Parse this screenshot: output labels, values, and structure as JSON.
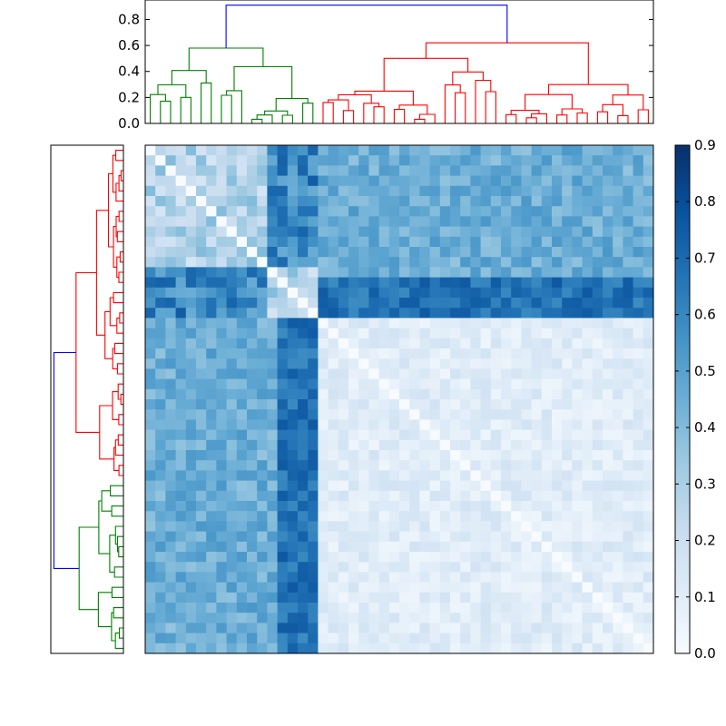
{
  "chart_data": {
    "type": "heatmap",
    "title": "",
    "xlabel": "",
    "ylabel": "",
    "grid": false,
    "matrix_size": 50,
    "colormap": "Blues",
    "color_range": [
      0.0,
      0.9
    ],
    "colorbar_ticks": [
      "0.0",
      "0.1",
      "0.2",
      "0.3",
      "0.4",
      "0.5",
      "0.6",
      "0.7",
      "0.8",
      "0.9"
    ],
    "top_dendrogram_ylim": [
      0.0,
      0.95
    ],
    "top_dendrogram_ticks": [
      "0.0",
      "0.2",
      "0.4",
      "0.6",
      "0.8"
    ],
    "cluster_colors": {
      "link": "#0000ff",
      "cluster_a": "#008000",
      "cluster_b": "#ff0000"
    },
    "cluster_a_size": 17,
    "cluster_b_size": 33,
    "root_merge_height": 0.91,
    "cluster_a_merge_height": 0.58,
    "cluster_b_merge_height": 0.62
  }
}
